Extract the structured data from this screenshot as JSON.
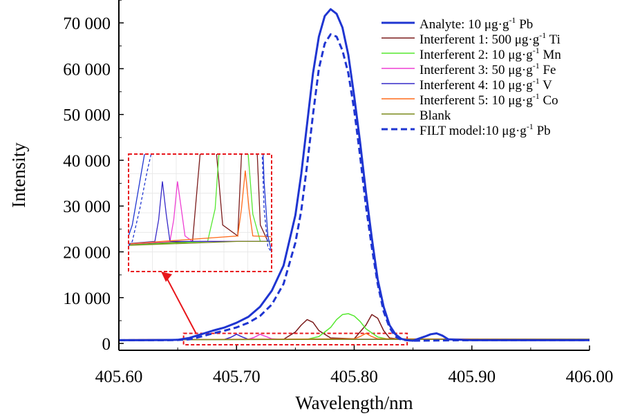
{
  "chart_data": {
    "type": "line",
    "xlabel": "Wavelength/nm",
    "ylabel": "Intensity",
    "xlim": [
      405.6,
      406.0
    ],
    "ylim": [
      -1500,
      75000
    ],
    "x_ticks": [
      "405.60",
      "405.70",
      "405.80",
      "405.90",
      "406.00"
    ],
    "y_ticks": [
      "0",
      "10 000",
      "20 000",
      "30 000",
      "40 000",
      "50 000",
      "60 000",
      "70 000"
    ],
    "legend_position": "top-right",
    "series": [
      {
        "name": "Analyte: 10 μg·g",
        "unit_sup": "-1",
        "element": "Pb",
        "color": "#1f35d1",
        "style": "solid",
        "width": 3,
        "x": [
          405.6,
          405.62,
          405.64,
          405.65,
          405.66,
          405.67,
          405.68,
          405.69,
          405.7,
          405.71,
          405.72,
          405.73,
          405.74,
          405.75,
          405.755,
          405.76,
          405.765,
          405.77,
          405.775,
          405.78,
          405.785,
          405.79,
          405.795,
          405.8,
          405.805,
          405.81,
          405.815,
          405.82,
          405.825,
          405.83,
          405.835,
          405.84,
          405.845,
          405.85,
          405.86,
          405.865,
          405.87,
          405.875,
          405.88,
          405.9,
          405.95,
          406.0
        ],
        "y": [
          700,
          700,
          750,
          800,
          1200,
          2000,
          2800,
          3500,
          4500,
          5800,
          8000,
          11500,
          17000,
          28000,
          37000,
          48000,
          59000,
          67000,
          71500,
          73000,
          72000,
          69000,
          63000,
          54000,
          44000,
          33000,
          23000,
          14000,
          8000,
          4000,
          2000,
          1000,
          700,
          600,
          1500,
          2000,
          2200,
          1700,
          900,
          700,
          700,
          700
        ]
      },
      {
        "name": "Interferent 1: 500 μg·g",
        "unit_sup": "-1",
        "element": "Ti",
        "color": "#7a1a1a",
        "style": "solid",
        "width": 1.5,
        "x": [
          405.6,
          405.74,
          405.75,
          405.755,
          405.76,
          405.765,
          405.77,
          405.78,
          405.8,
          405.81,
          405.815,
          405.82,
          405.825,
          405.83,
          405.84,
          405.86,
          406.0
        ],
        "y": [
          800,
          900,
          2500,
          4000,
          5200,
          4600,
          2800,
          1200,
          1000,
          4000,
          6300,
          5500,
          2800,
          1200,
          900,
          900,
          900
        ]
      },
      {
        "name": "Interferent 2: 10 μg·g",
        "unit_sup": "-1",
        "element": "Mn",
        "color": "#55e82f",
        "style": "solid",
        "width": 1.5,
        "x": [
          405.6,
          405.76,
          405.77,
          405.78,
          405.785,
          405.79,
          405.795,
          405.8,
          405.805,
          405.81,
          405.82,
          405.83,
          405.86,
          406.0
        ],
        "y": [
          800,
          900,
          1500,
          3500,
          5200,
          6300,
          6500,
          6000,
          4800,
          3200,
          1400,
          900,
          900,
          900
        ]
      },
      {
        "name": "Interferent 3: 50 μg·g",
        "unit_sup": "-1",
        "element": "Fe",
        "color": "#ee3fd3",
        "style": "solid",
        "width": 1.5,
        "x": [
          405.6,
          405.71,
          405.715,
          405.72,
          405.725,
          405.73,
          405.74,
          406.0
        ],
        "y": [
          800,
          900,
          1300,
          2000,
          1500,
          1000,
          900,
          900
        ]
      },
      {
        "name": "Interferent 4: 10 μg·g",
        "unit_sup": "-1",
        "element": "V",
        "color": "#3528c8",
        "style": "solid",
        "width": 1.5,
        "x": [
          405.6,
          405.69,
          405.695,
          405.7,
          405.705,
          405.71,
          405.72,
          406.0
        ],
        "y": [
          800,
          900,
          1300,
          2000,
          1400,
          900,
          900,
          900
        ]
      },
      {
        "name": "Interferent 5: 10 μg·g",
        "unit_sup": "-1",
        "element": "Co",
        "color": "#ff6a1a",
        "style": "solid",
        "width": 1.5,
        "x": [
          405.6,
          405.8,
          405.805,
          405.81,
          405.815,
          405.82,
          406.0
        ],
        "y": [
          800,
          1000,
          1500,
          2200,
          1500,
          1000,
          900
        ]
      },
      {
        "name": "Blank",
        "unit_sup": "",
        "element": "",
        "color": "#7a8a1a",
        "style": "solid",
        "width": 1.5,
        "x": [
          405.6,
          405.8,
          406.0
        ],
        "y": [
          800,
          900,
          900
        ]
      },
      {
        "name": "FILT model:10 μg·g",
        "unit_sup": "-1",
        "element": "Pb",
        "color": "#1f35d1",
        "style": "dashed",
        "width": 3,
        "x": [
          405.6,
          405.62,
          405.64,
          405.65,
          405.66,
          405.67,
          405.68,
          405.69,
          405.7,
          405.71,
          405.72,
          405.73,
          405.74,
          405.75,
          405.755,
          405.76,
          405.765,
          405.77,
          405.775,
          405.78,
          405.785,
          405.79,
          405.795,
          405.8,
          405.805,
          405.81,
          405.815,
          405.82,
          405.825,
          405.83,
          405.835,
          405.84,
          405.85,
          405.9,
          406.0
        ],
        "y": [
          700,
          700,
          700,
          750,
          900,
          1500,
          2200,
          2800,
          3500,
          4500,
          6000,
          8500,
          13000,
          22000,
          29000,
          39000,
          50000,
          60000,
          65500,
          67500,
          67000,
          64000,
          59000,
          51000,
          41000,
          30000,
          21000,
          13000,
          7000,
          3500,
          1500,
          800,
          600,
          700,
          700
        ]
      }
    ]
  }
}
